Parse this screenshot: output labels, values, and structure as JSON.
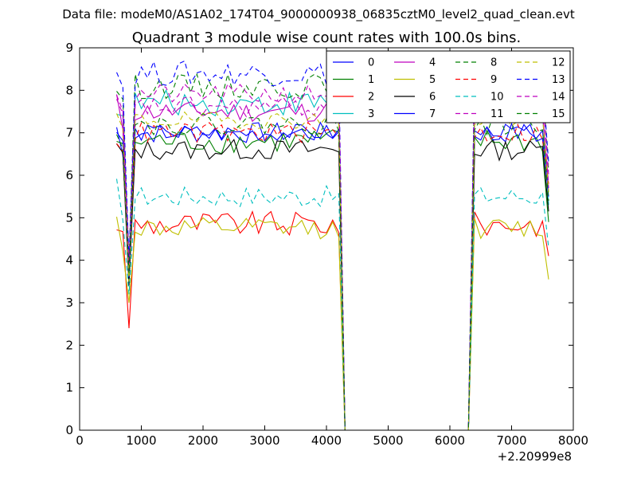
{
  "figure": {
    "suptitle": "Data file: modeM0/AS1A02_174T04_9000000938_06835cztM0_level2_quad_clean.evt"
  },
  "chart_data": {
    "type": "line",
    "title": "Quadrant 3 module wise count rates with 100.0s bins.",
    "xlabel": "",
    "ylabel": "",
    "x_offset_label": "+2.20999e8",
    "xlim": [
      0,
      8000
    ],
    "ylim": [
      0,
      9
    ],
    "x_ticks": [
      0,
      1000,
      2000,
      3000,
      4000,
      5000,
      6000,
      7000,
      8000
    ],
    "y_ticks": [
      0,
      1,
      2,
      3,
      4,
      5,
      6,
      7,
      8,
      9
    ],
    "grid": false,
    "legend_position": "top-right",
    "legend_columns": 4,
    "series_x_description": "100 s bins; active 600-4200 and 6400-7600, zero 4300-6300",
    "series": [
      {
        "name": "0",
        "color": "#0000ff",
        "dash": false,
        "base": 7.0,
        "noise": 0.25,
        "dip": 3.9,
        "drop_end": 5.6
      },
      {
        "name": "1",
        "color": "#008000",
        "dash": false,
        "base": 6.8,
        "noise": 0.3,
        "dip": 3.8,
        "drop_end": 4.9
      },
      {
        "name": "2",
        "color": "#ff0000",
        "dash": false,
        "base": 4.85,
        "noise": 0.3,
        "dip": 2.4,
        "drop_end": 4.1
      },
      {
        "name": "3",
        "color": "#00bfbf",
        "dash": false,
        "base": 7.7,
        "noise": 0.3,
        "dip": 3.7,
        "drop_end": 5.3
      },
      {
        "name": "4",
        "color": "#bf00bf",
        "dash": false,
        "base": 7.5,
        "noise": 0.25,
        "dip": 3.6,
        "drop_end": 5.7
      },
      {
        "name": "5",
        "color": "#bfbf00",
        "dash": false,
        "base": 4.75,
        "noise": 0.25,
        "dip": 3.0,
        "drop_end": 3.55
      },
      {
        "name": "6",
        "color": "#000000",
        "dash": false,
        "base": 6.6,
        "noise": 0.25,
        "dip": 3.4,
        "drop_end": 5.15
      },
      {
        "name": "7",
        "color": "#0000ff",
        "dash": false,
        "base": 7.0,
        "noise": 0.2,
        "dip": 3.6,
        "drop_end": 5.5
      },
      {
        "name": "8",
        "color": "#008000",
        "dash": true,
        "base": 8.1,
        "noise": 0.3,
        "dip": 4.0,
        "drop_end": 6.1
      },
      {
        "name": "9",
        "color": "#ff0000",
        "dash": true,
        "base": 7.0,
        "noise": 0.25,
        "dip": 3.7,
        "drop_end": 5.8
      },
      {
        "name": "10",
        "color": "#00bfbf",
        "dash": true,
        "base": 5.5,
        "noise": 0.25,
        "dip": 3.2,
        "drop_end": 4.3
      },
      {
        "name": "11",
        "color": "#bf00bf",
        "dash": true,
        "base": 7.6,
        "noise": 0.25,
        "dip": 3.8,
        "drop_end": 5.8
      },
      {
        "name": "12",
        "color": "#bfbf00",
        "dash": true,
        "base": 7.3,
        "noise": 0.2,
        "dip": 3.5,
        "drop_end": 5.6
      },
      {
        "name": "13",
        "color": "#0000ff",
        "dash": true,
        "base": 8.4,
        "noise": 0.3,
        "dip": 4.0,
        "drop_end": 6.3
      },
      {
        "name": "14",
        "color": "#bf00bf",
        "dash": true,
        "base": 7.9,
        "noise": 0.25,
        "dip": 3.9,
        "drop_end": 6.0
      },
      {
        "name": "15",
        "color": "#008000",
        "dash": true,
        "base": 7.2,
        "noise": 0.25,
        "dip": 3.7,
        "drop_end": 5.4
      }
    ]
  }
}
